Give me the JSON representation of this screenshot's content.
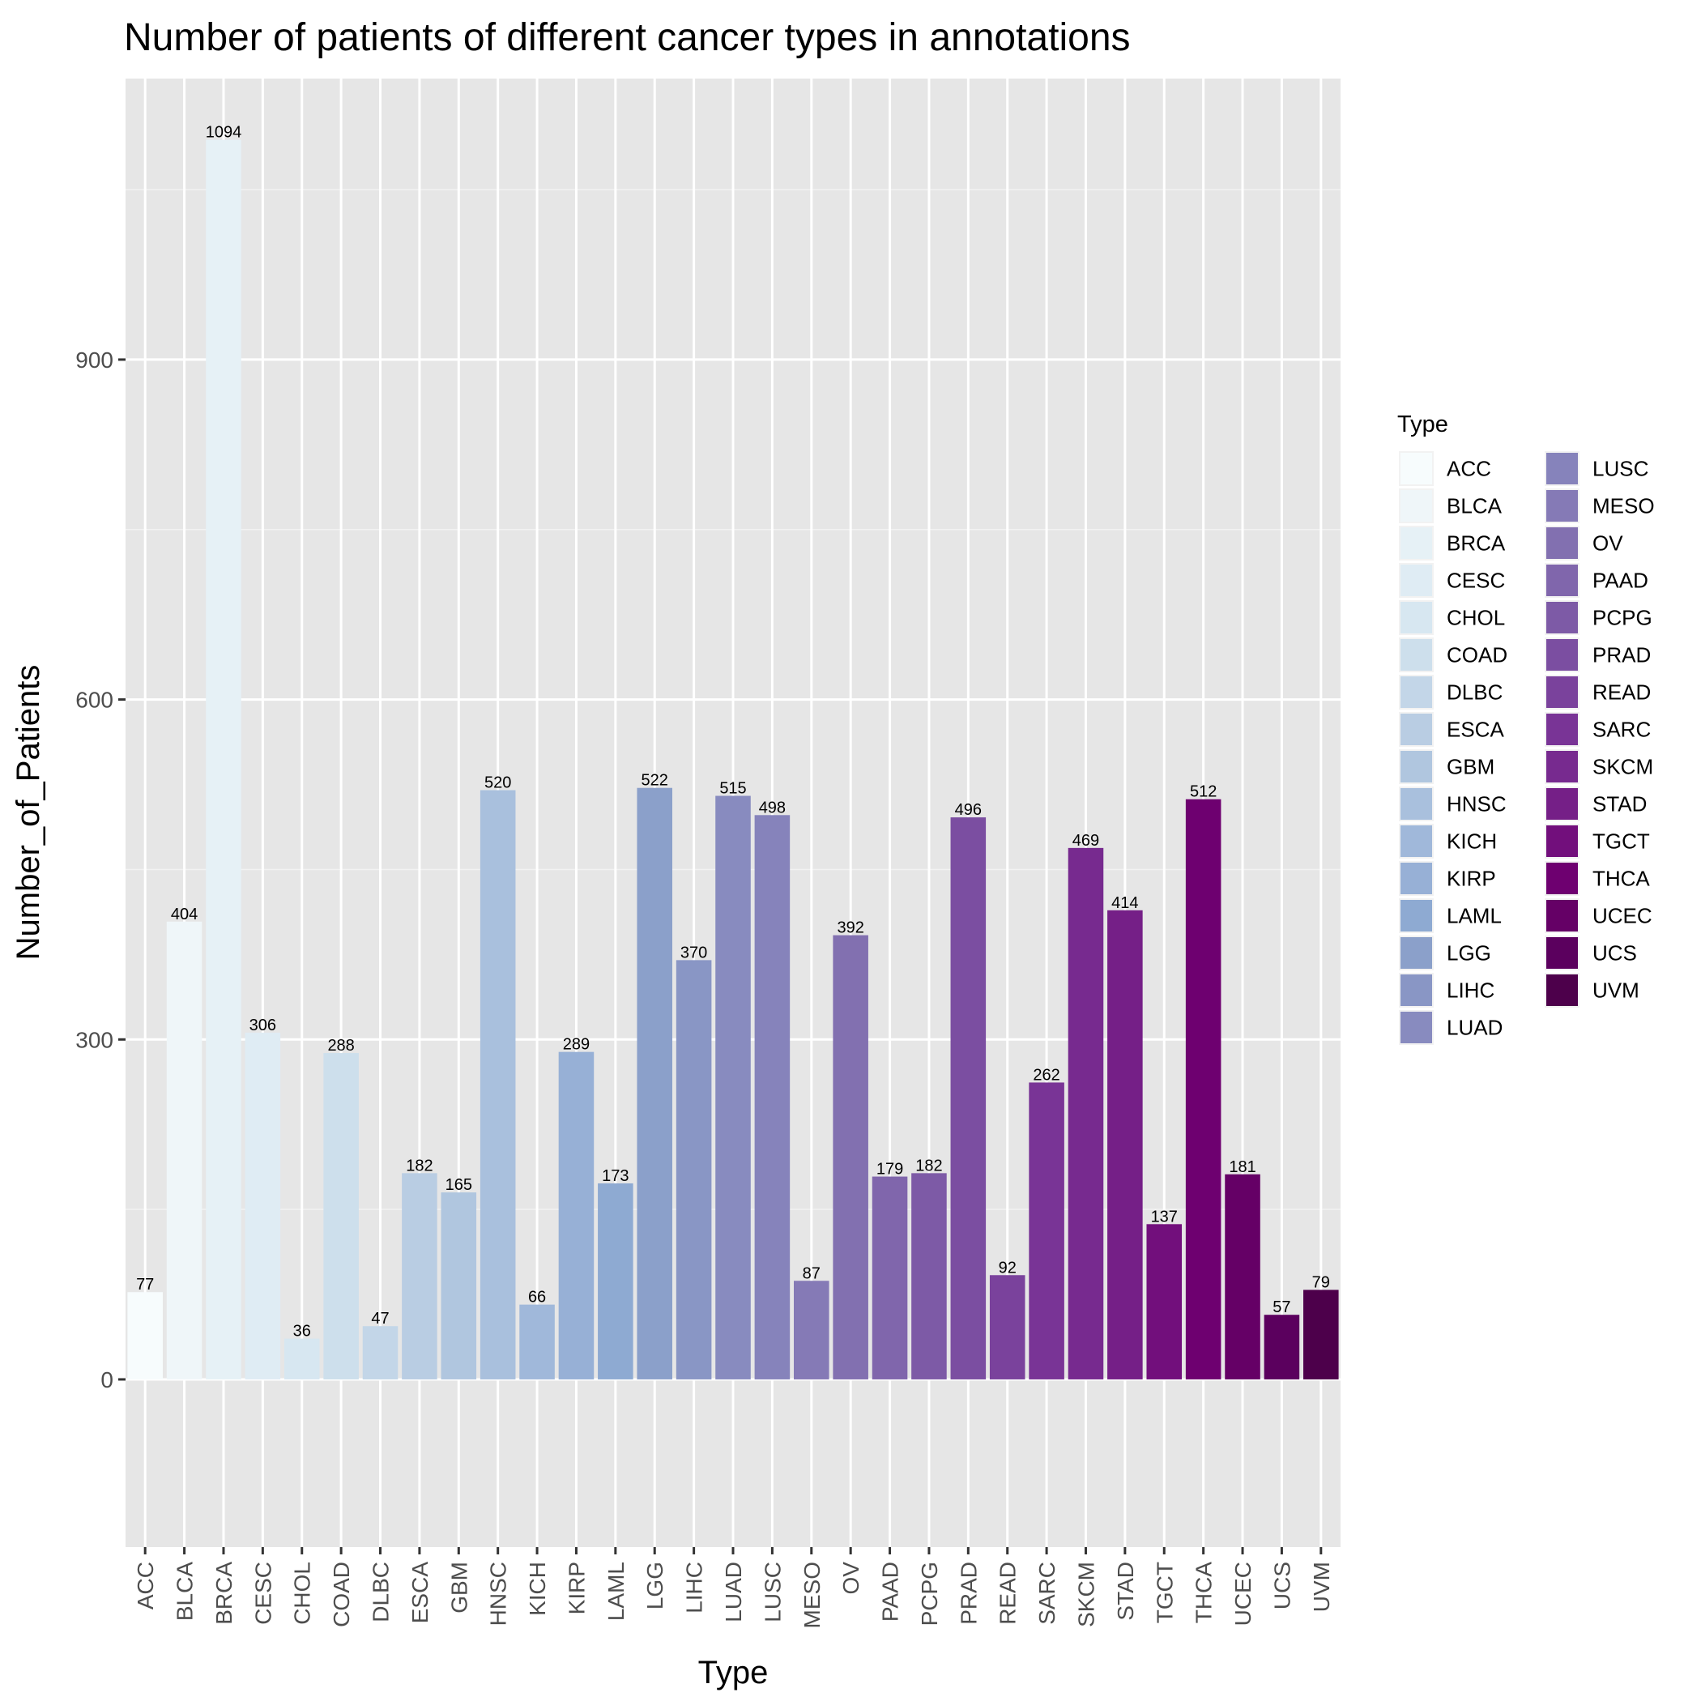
{
  "chart_data": {
    "type": "bar",
    "title": "Number of patients of different cancer types in annotations",
    "xlabel": "Type",
    "ylabel": "Number_of_Patients",
    "legend_title": "Type",
    "legend_position": "right",
    "grid": true,
    "ylim": [
      -148,
      1148
    ],
    "yticks": [
      0,
      300,
      600,
      900
    ],
    "categories": [
      "ACC",
      "BLCA",
      "BRCA",
      "CESC",
      "CHOL",
      "COAD",
      "DLBC",
      "ESCA",
      "GBM",
      "HNSC",
      "KICH",
      "KIRP",
      "LAML",
      "LGG",
      "LIHC",
      "LUAD",
      "LUSC",
      "MESO",
      "OV",
      "PAAD",
      "PCPG",
      "PRAD",
      "READ",
      "SARC",
      "SKCM",
      "STAD",
      "TGCT",
      "THCA",
      "UCEC",
      "UCS",
      "UVM"
    ],
    "values": [
      77,
      404,
      1094,
      306,
      36,
      288,
      47,
      182,
      165,
      520,
      66,
      289,
      173,
      522,
      370,
      515,
      498,
      87,
      392,
      179,
      182,
      496,
      92,
      262,
      469,
      414,
      137,
      512,
      181,
      57,
      79
    ],
    "value_labels": [
      "77",
      "404",
      "1094",
      "306",
      "36",
      "288",
      "47",
      "182",
      "165",
      "520",
      "66",
      "289",
      "173",
      "522",
      "370",
      "515",
      "498",
      "87",
      "392",
      "179",
      "182",
      "496",
      "92",
      "262",
      "469",
      "414",
      "137",
      "512",
      "181",
      "57",
      "79"
    ],
    "yticks_labels": [
      "0",
      "300",
      "600",
      "900"
    ],
    "colors": [
      "#f7fcfd",
      "#eff6f9",
      "#e6f1f6",
      "#dfecf4",
      "#d7e7f1",
      "#cddfec",
      "#c3d6e8",
      "#b9cde3",
      "#b0c6df",
      "#a9c0dd",
      "#a0b8da",
      "#97b0d6",
      "#8eaad2",
      "#8ba0ca",
      "#8996c5",
      "#888bbf",
      "#8683bb",
      "#857ab6",
      "#8270b0",
      "#8066ac",
      "#7d5aa6",
      "#7b4ea1",
      "#7a429c",
      "#793496",
      "#772a8f",
      "#751f87",
      "#720f7c",
      "#6e0070",
      "#650066",
      "#5b005e",
      "#4d004b"
    ]
  }
}
